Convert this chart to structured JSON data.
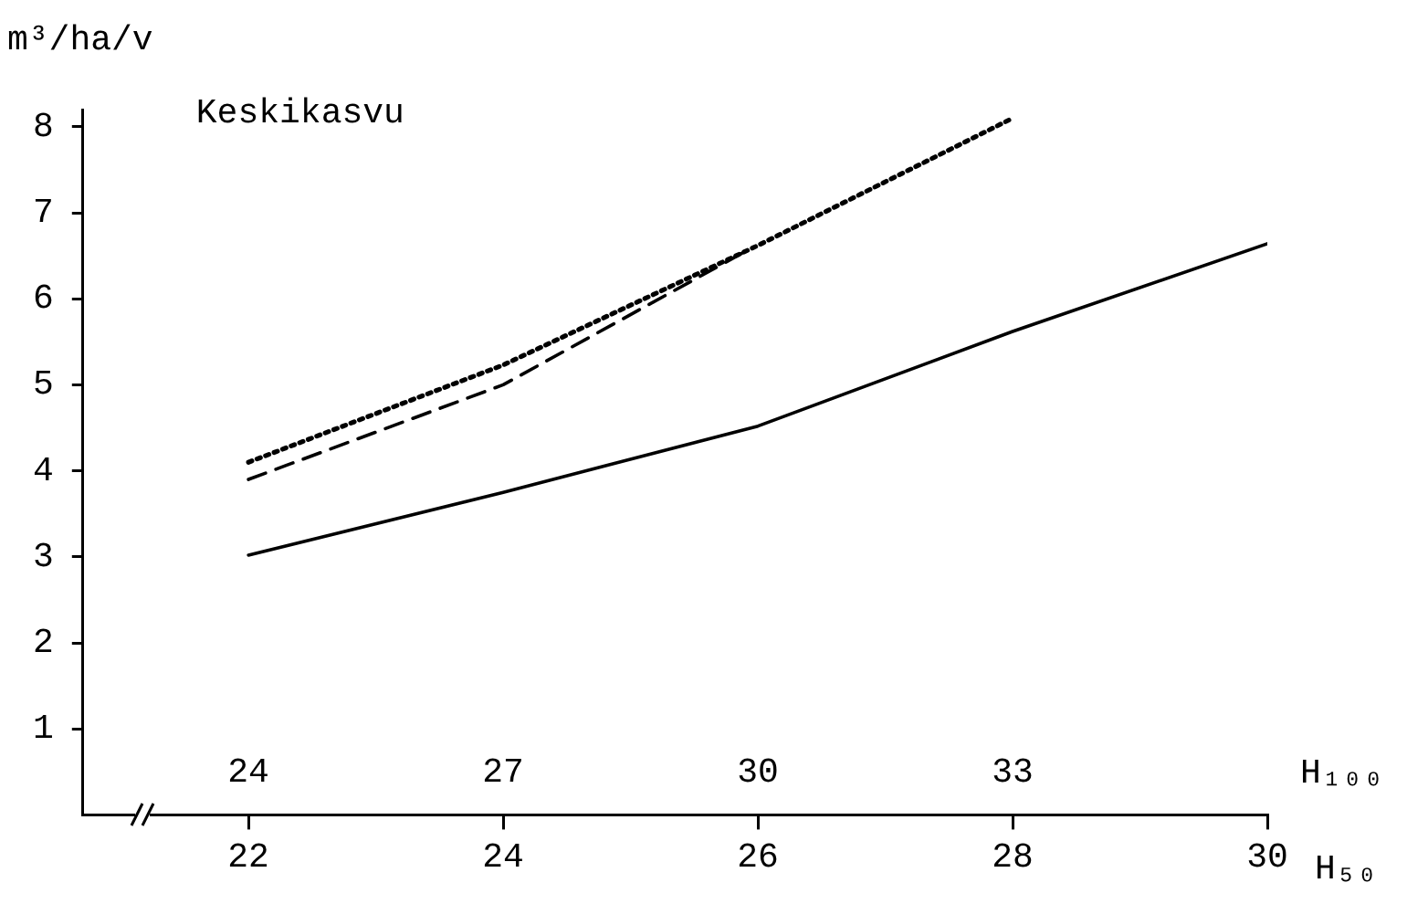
{
  "chart_data": {
    "type": "line",
    "title": "Keskikasvu",
    "ylabel": "m³/ha/v",
    "xlabel": "H₅₀",
    "x2label": "H₁₀₀",
    "xlim": [
      20.7,
      30
    ],
    "xticks": [
      22,
      24,
      26,
      28,
      30
    ],
    "x2lim": [
      22.05,
      36
    ],
    "x2ticks": [
      24,
      27,
      30,
      33
    ],
    "ylim": [
      0,
      8.2
    ],
    "yticks": [
      1,
      2,
      3,
      4,
      5,
      6,
      7,
      8
    ],
    "grid": false,
    "legend": false,
    "marker": "none",
    "series": [
      {
        "color": "#000000",
        "line_style": "solid",
        "x": [
          22,
          24,
          26,
          28,
          30
        ],
        "values": [
          3.02,
          3.75,
          4.52,
          5.62,
          6.64
        ]
      },
      {
        "color": "#000000",
        "line_style": "dashed",
        "x": [
          22,
          24,
          25.9
        ],
        "values": [
          3.9,
          5.0,
          6.55
        ]
      },
      {
        "color": "#000000",
        "line_style": "dotted",
        "x": [
          22,
          24,
          26,
          28
        ],
        "values": [
          4.1,
          5.23,
          6.62,
          8.1
        ]
      }
    ]
  }
}
